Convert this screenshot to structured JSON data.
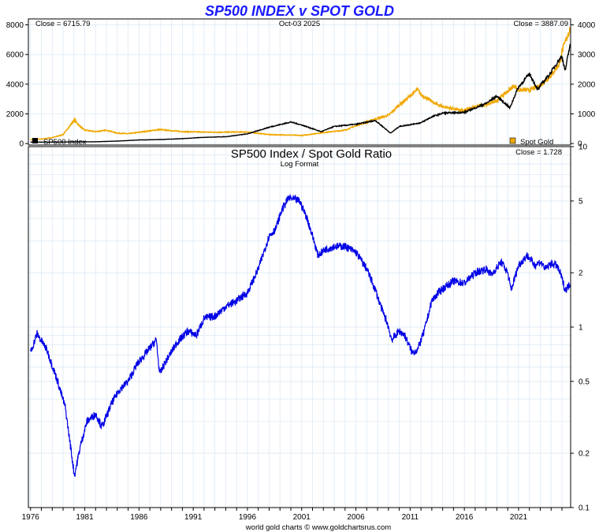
{
  "title": "SP500 INDEX v SPOT GOLD",
  "date_label": "Oct-03  2025",
  "close_left": "Close = 6715.79",
  "close_right": "Close = 3887.09",
  "legend": {
    "left": "SP500 Index",
    "right": "Spot Gold"
  },
  "colors": {
    "title": "#1a1aff",
    "sp500": "#000000",
    "gold": "#f0a800",
    "ratio": "#0000e6",
    "grid": "#dde9f5"
  },
  "ratio_title": "SP500 Index  /  Spot Gold Ratio",
  "ratio_subtitle": "Log Format",
  "ratio_close": "Close = 1.728",
  "footer": "world gold charts © www.goldchartsrus.com",
  "chart_data": [
    {
      "type": "line",
      "title": "SP500 INDEX v SPOT GOLD",
      "x_ticks": [
        "1976",
        "1981",
        "1986",
        "1991",
        "1996",
        "2001",
        "2006",
        "2011",
        "2016",
        "2021"
      ],
      "y_left_ticks": [
        "0",
        "2000",
        "4000",
        "6000",
        "8000"
      ],
      "y_right_ticks": [
        "0",
        "1000",
        "2000",
        "3000",
        "4000"
      ],
      "ylim_left": [
        -100,
        8400
      ],
      "ylim_right": [
        -50,
        4200
      ],
      "xlim": [
        1975.8,
        2025.8
      ],
      "series": [
        {
          "name": "SP500 Index",
          "axis": "left",
          "x": [
            1976,
            1978,
            1980,
            1982,
            1984,
            1986,
            1988,
            1990,
            1992,
            1994,
            1996,
            1998,
            2000,
            2001,
            2002.8,
            2004,
            2006,
            2007.8,
            2009.2,
            2010,
            2012,
            2013,
            2014,
            2016,
            2018,
            2019,
            2020.2,
            2020.8,
            2021,
            2022,
            2022.8,
            2023,
            2024,
            2024.5,
            2025,
            2025.3,
            2025.76
          ],
          "y": [
            100,
            95,
            110,
            120,
            165,
            240,
            270,
            330,
            420,
            460,
            650,
            1100,
            1450,
            1250,
            800,
            1150,
            1300,
            1550,
            700,
            1150,
            1400,
            1800,
            2050,
            2100,
            2700,
            3200,
            2400,
            3500,
            3800,
            4700,
            3600,
            3900,
            4800,
            5400,
            5900,
            4900,
            6716
          ]
        },
        {
          "name": "Spot Gold",
          "axis": "right",
          "x": [
            1976,
            1977,
            1978,
            1979,
            1980.05,
            1980.5,
            1981,
            1982,
            1983,
            1984,
            1985,
            1986,
            1987.9,
            1990,
            1993,
            1996,
            1998,
            2000,
            2001,
            2003,
            2005,
            2006,
            2008,
            2009,
            2010,
            2011.7,
            2012,
            2013.3,
            2014,
            2015.9,
            2017,
            2018,
            2019,
            2020.6,
            2021,
            2022,
            2023,
            2024,
            2024.8,
            2025,
            2025.76
          ],
          "y": [
            130,
            150,
            200,
            300,
            800,
            600,
            450,
            400,
            450,
            350,
            330,
            380,
            470,
            400,
            380,
            390,
            300,
            285,
            270,
            370,
            450,
            600,
            850,
            950,
            1300,
            1820,
            1650,
            1350,
            1250,
            1100,
            1250,
            1300,
            1450,
            1950,
            1800,
            1800,
            1950,
            2300,
            2700,
            3100,
            3887
          ]
        }
      ]
    },
    {
      "type": "line",
      "title": "SP500 Index  /  Spot Gold Ratio",
      "subtitle": "Log Format",
      "scale": "log",
      "x_ticks": [
        "1976",
        "1981",
        "1986",
        "1991",
        "1996",
        "2001",
        "2006",
        "2011",
        "2016",
        "2021"
      ],
      "y_ticks": [
        "0.1",
        "0.2",
        "0.5",
        "1",
        "2",
        "5",
        "10"
      ],
      "ylim": [
        0.1,
        10
      ],
      "xlim": [
        1975.8,
        2025.8
      ],
      "series": [
        {
          "name": "SP500 Index / Spot Gold Ratio",
          "x": [
            1976,
            1976.6,
            1977.5,
            1978.5,
            1979.2,
            1980.05,
            1980.6,
            1981.2,
            1982,
            1982.6,
            1983.5,
            1984.2,
            1985,
            1985.8,
            1986.5,
            1987.6,
            1987.9,
            1988.5,
            1989.5,
            1990.5,
            1991.3,
            1992,
            1993,
            1994,
            1995,
            1996,
            1997,
            1998,
            1998.6,
            1999.2,
            1999.8,
            2000.3,
            2000.8,
            2001.5,
            2002,
            2002.5,
            2003.2,
            2004,
            2005,
            2006,
            2007,
            2007.8,
            2008.4,
            2008.9,
            2009.3,
            2010,
            2010.5,
            2011.2,
            2011.7,
            2012.3,
            2013,
            2013.8,
            2015,
            2016,
            2017,
            2018,
            2018.5,
            2019.4,
            2020,
            2020.3,
            2021,
            2021.8,
            2022.5,
            2023,
            2023.5,
            2024,
            2024.5,
            2024.9,
            2025.3,
            2025.76
          ],
          "y": [
            0.72,
            0.92,
            0.75,
            0.5,
            0.36,
            0.15,
            0.22,
            0.3,
            0.33,
            0.28,
            0.38,
            0.45,
            0.5,
            0.62,
            0.7,
            0.85,
            0.55,
            0.65,
            0.82,
            0.95,
            0.9,
            1.12,
            1.15,
            1.3,
            1.4,
            1.55,
            2.1,
            3.2,
            3.5,
            4.5,
            5.2,
            5.1,
            5.0,
            4.0,
            3.2,
            2.5,
            2.7,
            2.8,
            2.8,
            2.6,
            2.1,
            1.6,
            1.25,
            1.05,
            0.85,
            0.95,
            0.9,
            0.72,
            0.75,
            0.95,
            1.4,
            1.6,
            1.8,
            1.75,
            2.0,
            2.1,
            1.95,
            2.3,
            2.0,
            1.6,
            2.2,
            2.5,
            2.2,
            2.3,
            2.1,
            2.25,
            2.2,
            1.95,
            1.6,
            1.73
          ]
        }
      ]
    }
  ]
}
